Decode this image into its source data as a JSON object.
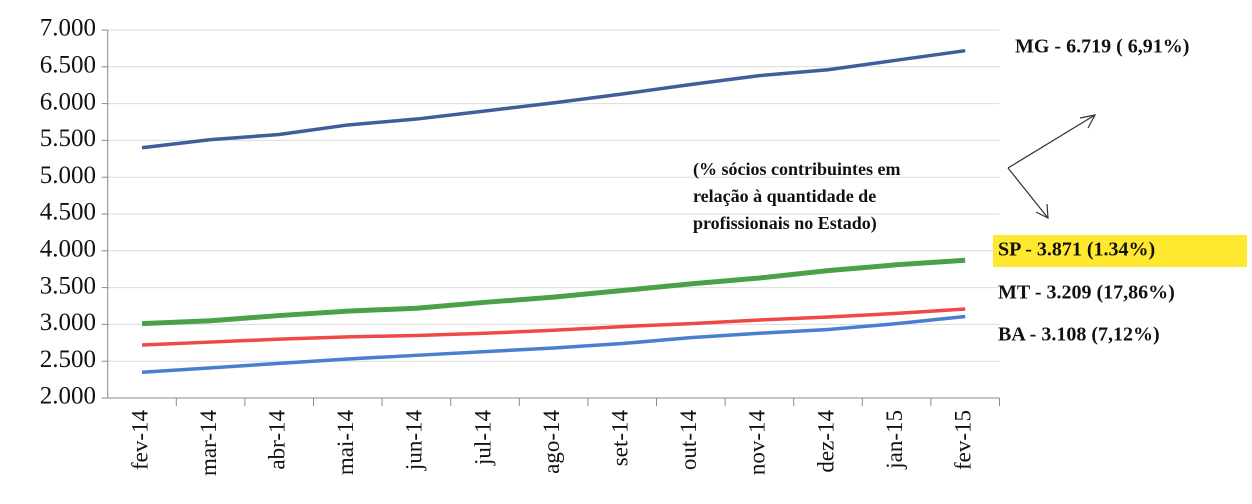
{
  "chart_data": {
    "type": "line",
    "categories": [
      "fev-14",
      "mar-14",
      "abr-14",
      "mai-14",
      "jun-14",
      "jul-14",
      "ago-14",
      "set-14",
      "out-14",
      "nov-14",
      "dez-14",
      "jan-15",
      "fev-15"
    ],
    "series": [
      {
        "name": "MG - 6.719 ( 6,91%)",
        "color": "#3f5f9a",
        "values": [
          5400,
          5510,
          5580,
          5710,
          5790,
          5900,
          6010,
          6130,
          6260,
          6380,
          6460,
          6590,
          6719
        ]
      },
      {
        "name": "SP - 3.871 (1.34%)",
        "color": "#4aa14a",
        "highlight": "#ffe930",
        "values": [
          3010,
          3050,
          3120,
          3180,
          3220,
          3300,
          3370,
          3460,
          3550,
          3630,
          3730,
          3810,
          3871
        ]
      },
      {
        "name": "MT - 3.209 (17,86%)",
        "color": "#ee4848",
        "values": [
          2720,
          2760,
          2800,
          2830,
          2850,
          2880,
          2920,
          2970,
          3010,
          3060,
          3100,
          3150,
          3209
        ]
      },
      {
        "name": "BA - 3.108 (7,12%)",
        "color": "#4a7fd0",
        "values": [
          2350,
          2410,
          2470,
          2530,
          2580,
          2630,
          2680,
          2740,
          2820,
          2880,
          2930,
          3010,
          3108
        ]
      }
    ],
    "annotation": [
      "(% sócios contribuintes em",
      "relação à quantidade de",
      "profissionais no Estado)"
    ],
    "ylim": [
      2000,
      7000
    ],
    "yticks": [
      {
        "value": 2000,
        "label": "2.000"
      },
      {
        "value": 2500,
        "label": "2.500"
      },
      {
        "value": 3000,
        "label": "3.000"
      },
      {
        "value": 3500,
        "label": "3.500"
      },
      {
        "value": 4000,
        "label": "4.000"
      },
      {
        "value": 4500,
        "label": "4.500"
      },
      {
        "value": 5000,
        "label": "5.000"
      },
      {
        "value": 5500,
        "label": "5.500"
      },
      {
        "value": 6000,
        "label": "6.000"
      },
      {
        "value": 6500,
        "label": "6.500"
      },
      {
        "value": 7000,
        "label": "7.000"
      }
    ],
    "grid": true
  }
}
